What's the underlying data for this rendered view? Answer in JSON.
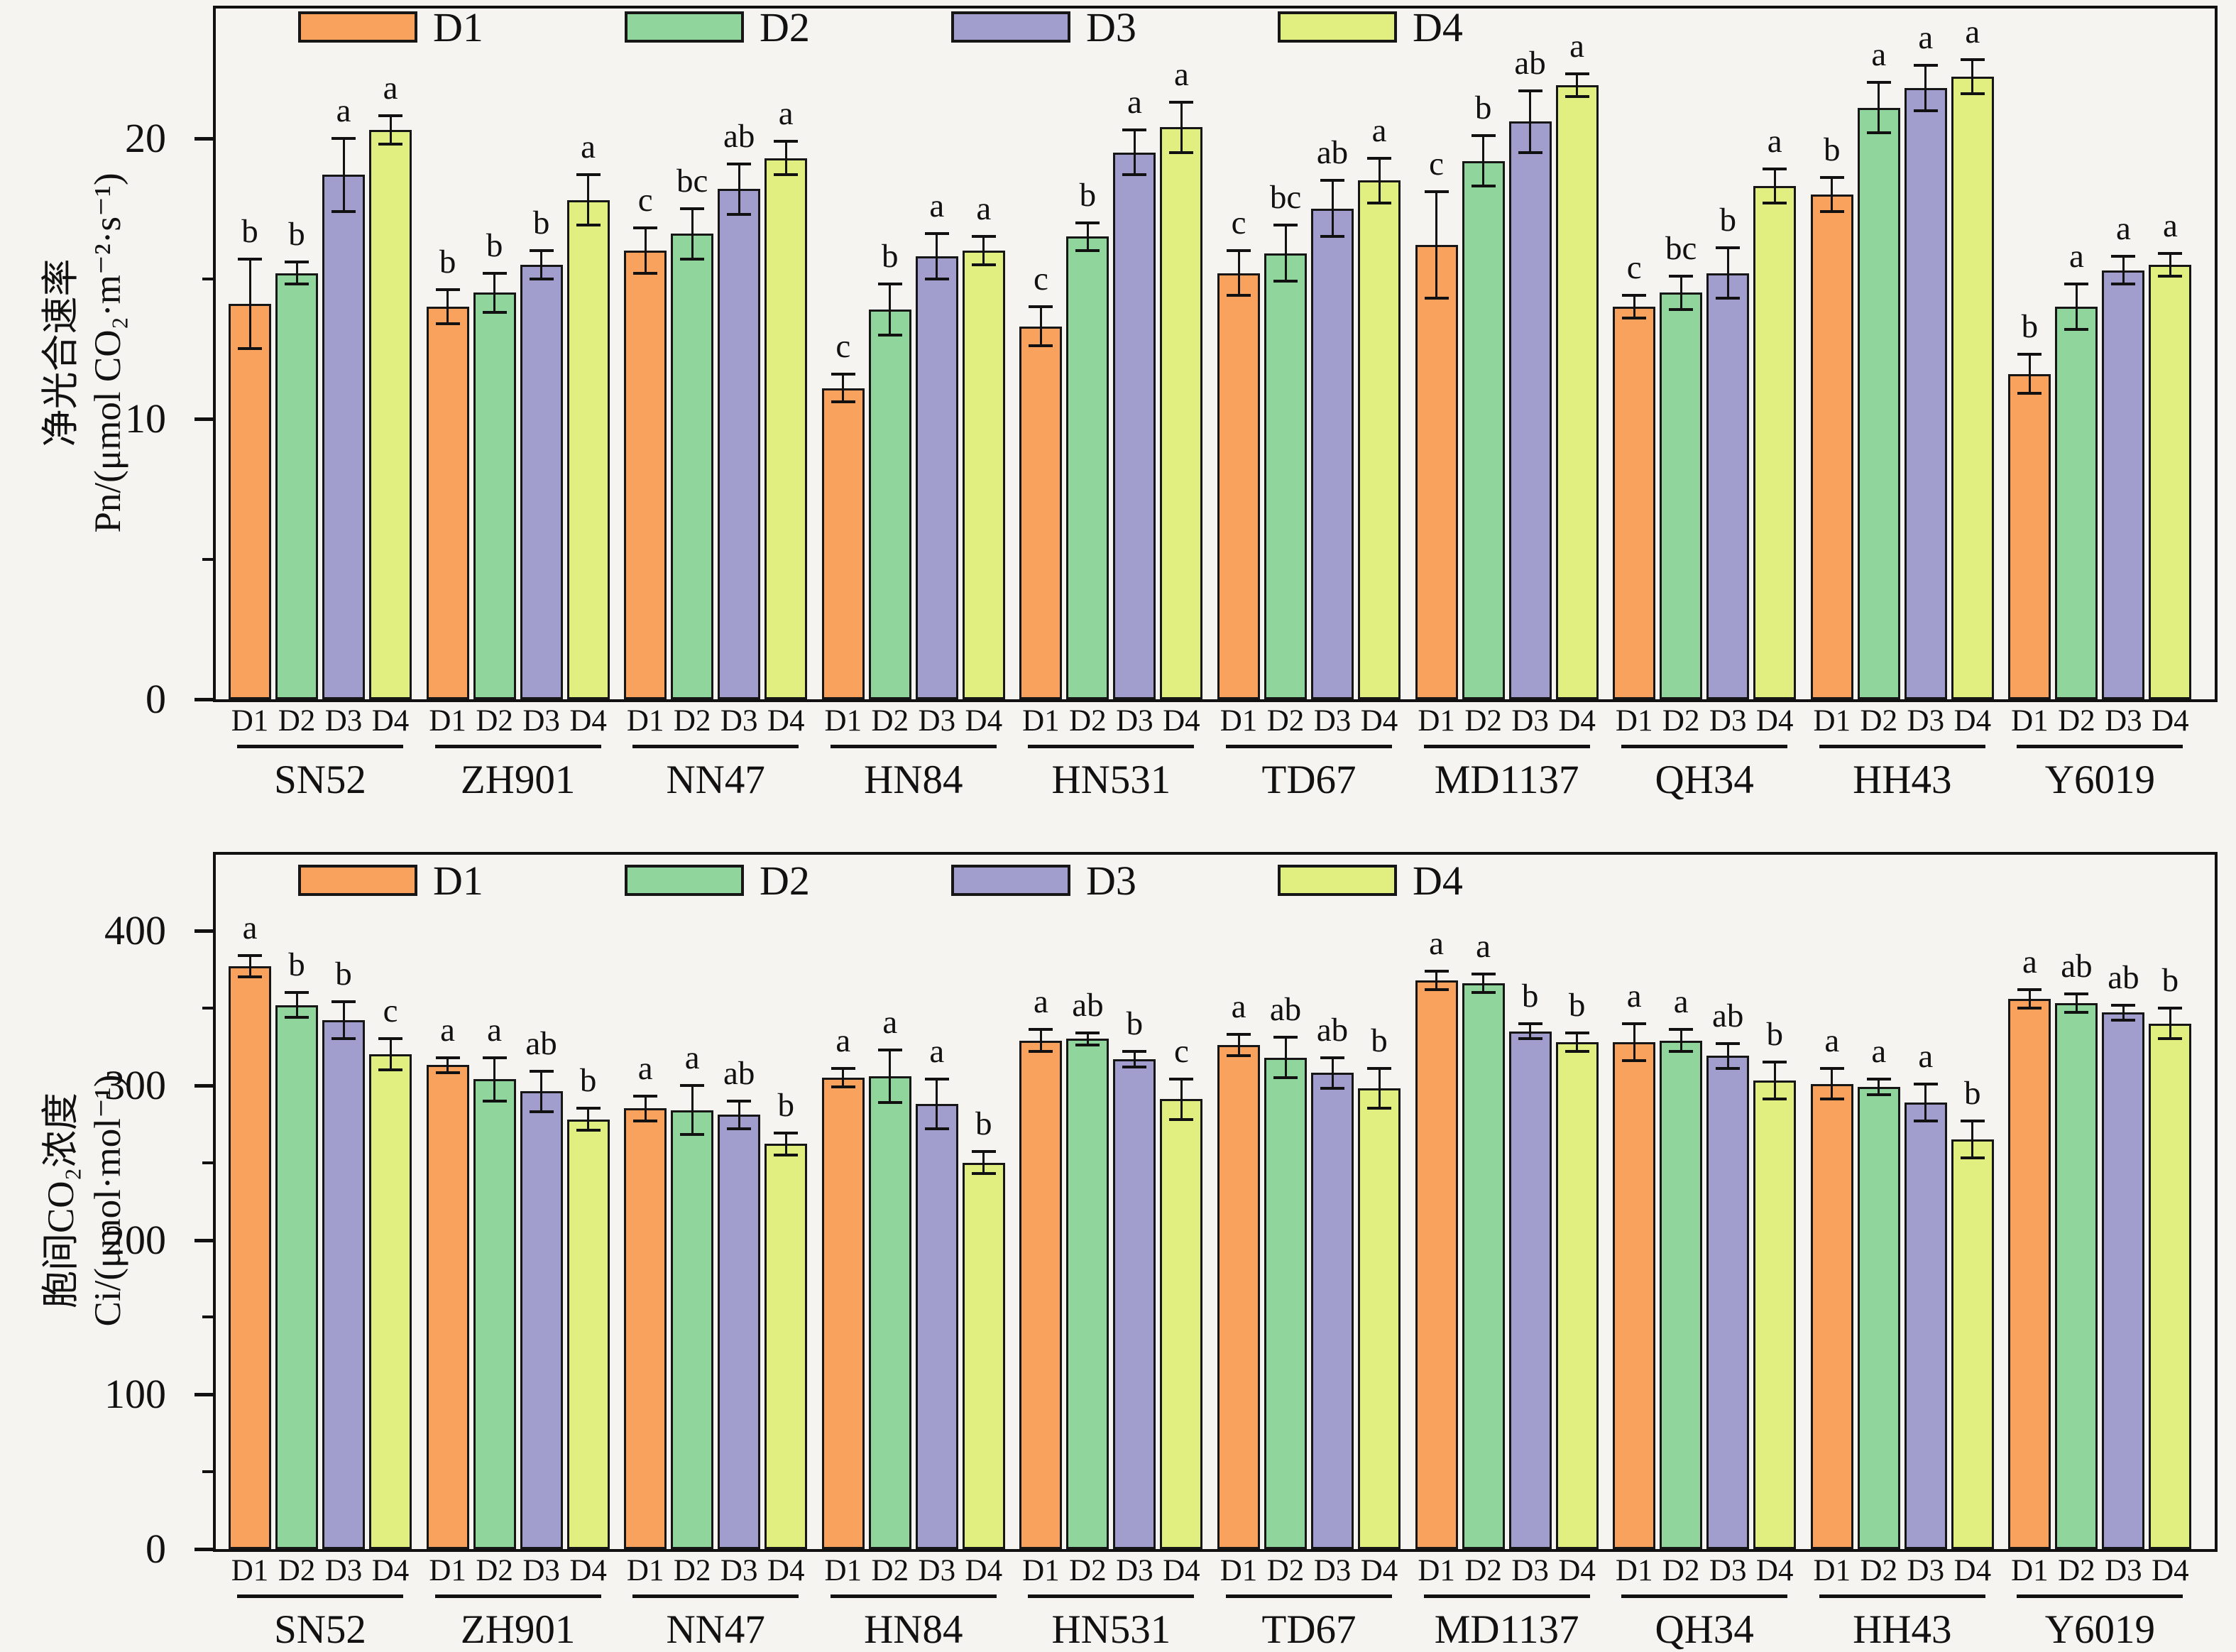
{
  "page": {
    "background": "#f5f4f1"
  },
  "colors": {
    "axis": "#111111",
    "bar_border": "#161616",
    "text": "#111111",
    "d1": "#F9A25E",
    "d2": "#90D59B",
    "d3": "#A19ECD",
    "d4": "#E0EF80"
  },
  "legend": {
    "items": [
      {
        "label": "D1",
        "color": "#F9A25E"
      },
      {
        "label": "D2",
        "color": "#90D59B"
      },
      {
        "label": "D3",
        "color": "#A19ECD"
      },
      {
        "label": "D4",
        "color": "#E0EF80"
      }
    ]
  },
  "chart_data": [
    {
      "type": "bar",
      "panel_id": "Pn",
      "title": "",
      "ylabel_cn": "净光合速率",
      "ylabel": "Pn/(μmol CO₂·m⁻²·s⁻¹)",
      "xlabel": "",
      "ylim": [
        0,
        24.7
      ],
      "grid": false,
      "legend_position": "inside-top-left",
      "error_bars": true,
      "yticks": [
        {
          "v": 0,
          "label": "0"
        },
        {
          "v": 10,
          "label": "10"
        },
        {
          "v": 20,
          "label": "20"
        }
      ],
      "yticks_minor": [
        5,
        15
      ],
      "categories": [
        "SN52",
        "ZH901",
        "NN47",
        "HN84",
        "HN531",
        "TD67",
        "MD1137",
        "QH34",
        "HH43",
        "Y6019"
      ],
      "series": [
        {
          "name": "D1",
          "color": "#F9A25E",
          "values": [
            14.1,
            14.0,
            16.0,
            11.1,
            13.3,
            15.2,
            16.2,
            14.0,
            18.0,
            11.6
          ],
          "errors": [
            1.6,
            0.6,
            0.8,
            0.5,
            0.7,
            0.8,
            1.9,
            0.4,
            0.6,
            0.7
          ],
          "letters": [
            "b",
            "b",
            "c",
            "c",
            "c",
            "c",
            "c",
            "c",
            "b",
            "b"
          ]
        },
        {
          "name": "D2",
          "color": "#90D59B",
          "values": [
            15.2,
            14.5,
            16.6,
            13.9,
            16.5,
            15.9,
            19.2,
            14.5,
            21.1,
            14.0
          ],
          "errors": [
            0.4,
            0.7,
            0.9,
            0.9,
            0.5,
            1.0,
            0.9,
            0.6,
            0.9,
            0.8
          ],
          "letters": [
            "b",
            "b",
            "bc",
            "b",
            "b",
            "bc",
            "b",
            "bc",
            "a",
            "a"
          ]
        },
        {
          "name": "D3",
          "color": "#A19ECD",
          "values": [
            18.7,
            15.5,
            18.2,
            15.8,
            19.5,
            17.5,
            20.6,
            15.2,
            21.8,
            15.3
          ],
          "errors": [
            1.3,
            0.5,
            0.9,
            0.8,
            0.8,
            1.0,
            1.1,
            0.9,
            0.8,
            0.5
          ],
          "letters": [
            "a",
            "b",
            "ab",
            "a",
            "a",
            "ab",
            "ab",
            "b",
            "a",
            "a"
          ]
        },
        {
          "name": "D4",
          "color": "#E0EF80",
          "values": [
            20.3,
            17.8,
            19.3,
            16.0,
            20.4,
            18.5,
            21.9,
            18.3,
            22.2,
            15.5
          ],
          "errors": [
            0.5,
            0.9,
            0.6,
            0.5,
            0.9,
            0.8,
            0.4,
            0.6,
            0.6,
            0.4
          ],
          "letters": [
            "a",
            "a",
            "a",
            "a",
            "a",
            "a",
            "a",
            "a",
            "a",
            "a"
          ]
        }
      ]
    },
    {
      "type": "bar",
      "panel_id": "Ci",
      "title": "",
      "ylabel_cn": "胞间CO₂浓度",
      "ylabel": "Ci/(μmol·mol⁻¹)",
      "xlabel": "",
      "ylim": [
        0,
        451
      ],
      "grid": false,
      "legend_position": "inside-top-left",
      "error_bars": true,
      "yticks": [
        {
          "v": 0,
          "label": "0"
        },
        {
          "v": 100,
          "label": "100"
        },
        {
          "v": 200,
          "label": "200"
        },
        {
          "v": 300,
          "label": "300"
        },
        {
          "v": 400,
          "label": "400"
        }
      ],
      "yticks_minor": [
        50,
        150,
        250,
        350
      ],
      "categories": [
        "SN52",
        "ZH901",
        "NN47",
        "HN84",
        "HN531",
        "TD67",
        "MD1137",
        "QH34",
        "HH43",
        "Y6019"
      ],
      "series": [
        {
          "name": "D1",
          "color": "#F9A25E",
          "values": [
            377,
            313,
            285,
            305,
            329,
            326,
            368,
            328,
            301,
            356
          ],
          "errors": [
            7,
            5,
            8,
            6,
            7,
            7,
            6,
            12,
            10,
            6
          ],
          "letters": [
            "a",
            "a",
            "a",
            "a",
            "a",
            "a",
            "a",
            "a",
            "a",
            "a"
          ]
        },
        {
          "name": "D2",
          "color": "#90D59B",
          "values": [
            352,
            304,
            284,
            306,
            330,
            318,
            366,
            329,
            299,
            353
          ],
          "errors": [
            8,
            14,
            16,
            17,
            4,
            13,
            6,
            7,
            5,
            6
          ],
          "letters": [
            "b",
            "a",
            "a",
            "a",
            "ab",
            "ab",
            "a",
            "a",
            "a",
            "ab"
          ]
        },
        {
          "name": "D3",
          "color": "#A19ECD",
          "values": [
            342,
            296,
            281,
            288,
            317,
            308,
            335,
            319,
            289,
            347
          ],
          "errors": [
            12,
            13,
            9,
            16,
            5,
            10,
            5,
            8,
            12,
            5
          ],
          "letters": [
            "b",
            "ab",
            "ab",
            "a",
            "b",
            "ab",
            "b",
            "ab",
            "a",
            "ab"
          ]
        },
        {
          "name": "D4",
          "color": "#E0EF80",
          "values": [
            320,
            278,
            262,
            250,
            291,
            298,
            328,
            303,
            265,
            340
          ],
          "errors": [
            10,
            7,
            7,
            7,
            13,
            13,
            6,
            12,
            12,
            10
          ],
          "letters": [
            "c",
            "b",
            "b",
            "b",
            "c",
            "b",
            "b",
            "b",
            "b",
            "b"
          ]
        }
      ]
    }
  ]
}
